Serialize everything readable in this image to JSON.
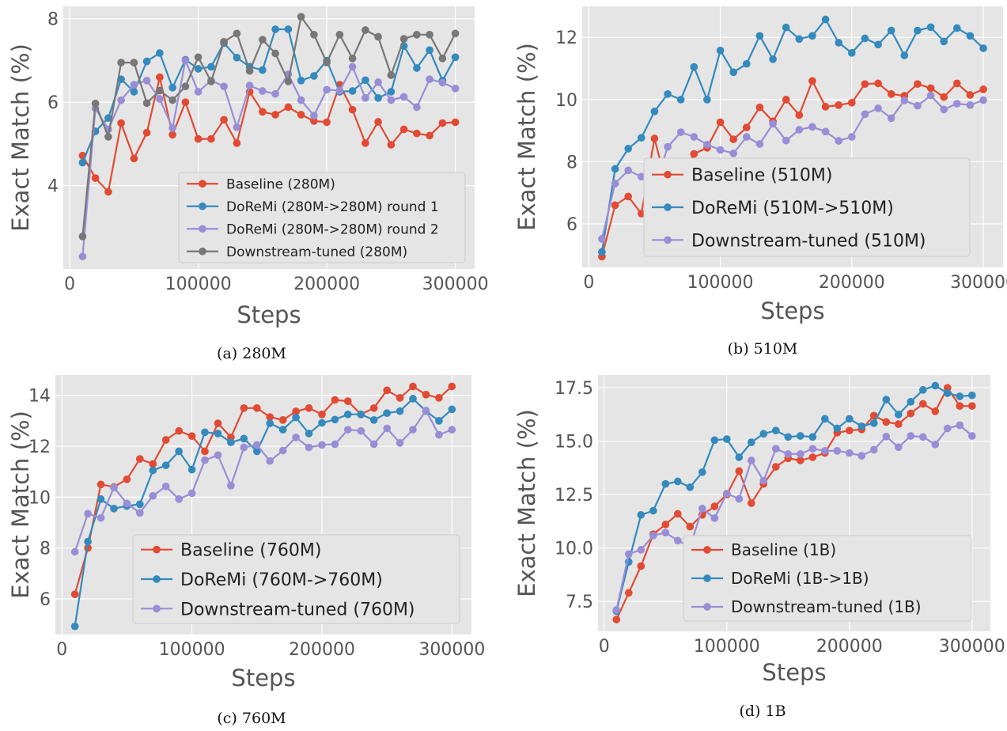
{
  "colors": {
    "baseline": "#E24A33",
    "doremi": "#348ABD",
    "doremi2": "#988ED5",
    "downstream": "#777777"
  },
  "chart_data": [
    {
      "type": "line",
      "caption": "(a) 280M",
      "xlabel": "Steps",
      "ylabel": "Exact Match (%)",
      "xlim": [
        -5000,
        315000
      ],
      "ylim": [
        2.0,
        8.3
      ],
      "xticks": [
        0,
        100000,
        200000,
        300000
      ],
      "xtick_labels": [
        "0",
        "100000",
        "200000",
        "300000"
      ],
      "yticks": [
        4,
        6,
        8
      ],
      "ytick_labels": [
        "4",
        "6",
        "8"
      ],
      "grid": true,
      "legend_position": "lower-right",
      "x": [
        10000,
        20000,
        30000,
        40000,
        50000,
        60000,
        70000,
        80000,
        90000,
        100000,
        110000,
        120000,
        130000,
        140000,
        150000,
        160000,
        170000,
        180000,
        190000,
        200000,
        210000,
        220000,
        230000,
        240000,
        250000,
        260000,
        270000,
        280000,
        290000,
        300000
      ],
      "series": [
        {
          "name": "Baseline (280M)",
          "color_key": "baseline",
          "values": [
            4.72,
            4.18,
            3.85,
            5.5,
            4.65,
            5.27,
            6.6,
            5.22,
            6.0,
            5.12,
            5.12,
            5.58,
            5.02,
            6.25,
            5.77,
            5.7,
            5.88,
            5.7,
            5.55,
            5.52,
            6.42,
            5.82,
            5.02,
            5.53,
            4.98,
            5.35,
            5.25,
            5.2,
            5.5,
            5.52
          ]
        },
        {
          "name": "DoReMi (280M->280M) round 1",
          "color_key": "doremi",
          "values": [
            4.55,
            5.3,
            5.62,
            6.55,
            6.25,
            6.98,
            7.18,
            6.35,
            7.02,
            6.8,
            6.85,
            7.42,
            7.07,
            6.85,
            6.77,
            7.75,
            7.75,
            6.52,
            6.63,
            7.0,
            6.25,
            6.27,
            6.53,
            6.1,
            6.25,
            7.35,
            6.82,
            7.25,
            6.52,
            7.08
          ]
        },
        {
          "name": "DoReMi (280M->280M) round 2",
          "color_key": "doremi2",
          "values": [
            2.3,
            5.85,
            5.35,
            6.05,
            6.42,
            6.52,
            6.08,
            5.38,
            7.0,
            6.25,
            6.52,
            6.38,
            5.4,
            6.4,
            6.27,
            6.2,
            6.67,
            6.05,
            5.68,
            6.3,
            6.28,
            6.85,
            6.1,
            6.48,
            6.05,
            6.13,
            5.88,
            6.55,
            6.47,
            6.33
          ]
        },
        {
          "name": "Downstream-tuned (280M)",
          "color_key": "downstream",
          "values": [
            2.78,
            5.97,
            5.17,
            6.95,
            6.95,
            5.98,
            6.28,
            6.05,
            6.38,
            7.08,
            6.5,
            7.45,
            7.65,
            6.75,
            7.5,
            7.17,
            6.5,
            8.05,
            7.62,
            6.95,
            7.62,
            7.05,
            7.73,
            7.57,
            6.65,
            7.52,
            7.62,
            7.62,
            7.05,
            7.65
          ]
        }
      ]
    },
    {
      "type": "line",
      "caption": "(b) 510M",
      "xlabel": "Steps",
      "ylabel": "Exact Match (%)",
      "xlim": [
        -5000,
        315000
      ],
      "ylim": [
        4.6,
        13.0
      ],
      "xticks": [
        0,
        100000,
        200000,
        300000
      ],
      "xtick_labels": [
        "0",
        "100000",
        "200000",
        "300000"
      ],
      "yticks": [
        6,
        8,
        10,
        12
      ],
      "ytick_labels": [
        "6",
        "8",
        "10",
        "12"
      ],
      "grid": true,
      "legend_position": "lower-right",
      "x": [
        10000,
        20000,
        30000,
        40000,
        50000,
        60000,
        70000,
        80000,
        90000,
        100000,
        110000,
        120000,
        130000,
        140000,
        150000,
        160000,
        170000,
        180000,
        190000,
        200000,
        210000,
        220000,
        230000,
        240000,
        250000,
        260000,
        270000,
        280000,
        290000,
        300000
      ],
      "series": [
        {
          "name": "Baseline (510M)",
          "color_key": "baseline",
          "values": [
            4.95,
            6.6,
            6.88,
            6.33,
            8.75,
            7.1,
            7.5,
            8.25,
            8.45,
            9.27,
            8.72,
            9.1,
            9.75,
            9.3,
            10.0,
            9.5,
            10.6,
            9.77,
            9.82,
            9.9,
            10.5,
            10.52,
            10.18,
            10.12,
            10.5,
            10.37,
            10.08,
            10.52,
            10.15,
            10.33
          ]
        },
        {
          "name": "DoReMi (510M->510M)",
          "color_key": "doremi",
          "values": [
            5.1,
            7.77,
            8.42,
            8.77,
            9.62,
            10.18,
            10.0,
            11.05,
            10.0,
            11.58,
            10.88,
            11.15,
            12.05,
            11.3,
            12.32,
            11.95,
            12.05,
            12.58,
            11.83,
            11.5,
            11.97,
            11.77,
            12.22,
            11.42,
            12.22,
            12.33,
            11.87,
            12.3,
            12.05,
            11.65
          ]
        },
        {
          "name": "Downstream-tuned (510M)",
          "color_key": "doremi2",
          "values": [
            5.52,
            7.3,
            7.72,
            7.52,
            7.15,
            8.48,
            8.95,
            8.8,
            8.55,
            8.38,
            8.27,
            8.8,
            8.57,
            9.22,
            8.68,
            9.03,
            9.12,
            8.97,
            8.67,
            8.8,
            9.53,
            9.72,
            9.4,
            9.97,
            9.8,
            10.13,
            9.68,
            9.87,
            9.82,
            9.98
          ]
        }
      ]
    },
    {
      "type": "line",
      "caption": "(c) 760M",
      "xlabel": "Steps",
      "ylabel": "Exact Match (%)",
      "xlim": [
        -5000,
        315000
      ],
      "ylim": [
        4.6,
        14.8
      ],
      "xticks": [
        0,
        100000,
        200000,
        300000
      ],
      "xtick_labels": [
        "0",
        "100000",
        "200000",
        "300000"
      ],
      "yticks": [
        6,
        8,
        10,
        12,
        14
      ],
      "ytick_labels": [
        "6",
        "8",
        "10",
        "12",
        "14"
      ],
      "grid": true,
      "legend_position": "lower-right",
      "x": [
        10000,
        20000,
        30000,
        40000,
        50000,
        60000,
        70000,
        80000,
        90000,
        100000,
        110000,
        120000,
        130000,
        140000,
        150000,
        160000,
        170000,
        180000,
        190000,
        200000,
        210000,
        220000,
        230000,
        240000,
        250000,
        260000,
        270000,
        280000,
        290000,
        300000
      ],
      "series": [
        {
          "name": "Baseline (760M)",
          "color_key": "baseline",
          "values": [
            6.18,
            8.0,
            10.5,
            10.4,
            10.7,
            11.5,
            11.3,
            12.25,
            12.6,
            12.4,
            11.8,
            12.9,
            12.35,
            13.5,
            13.5,
            13.15,
            13.03,
            13.37,
            13.5,
            13.25,
            13.82,
            13.77,
            13.25,
            13.5,
            14.2,
            13.9,
            14.35,
            14.03,
            13.9,
            14.35
          ]
        },
        {
          "name": "DoReMi (760M->760M)",
          "color_key": "doremi",
          "values": [
            4.92,
            8.25,
            9.92,
            9.55,
            9.65,
            9.72,
            11.05,
            11.25,
            11.8,
            11.08,
            12.55,
            12.5,
            12.15,
            12.3,
            11.8,
            12.9,
            12.65,
            13.13,
            12.5,
            12.92,
            13.05,
            13.25,
            13.25,
            13.03,
            13.3,
            13.38,
            13.87,
            13.38,
            13.0,
            13.45
          ]
        },
        {
          "name": "Downstream-tuned (760M)",
          "color_key": "doremi2",
          "values": [
            7.85,
            9.35,
            9.18,
            10.38,
            9.75,
            9.38,
            10.05,
            10.42,
            9.92,
            10.15,
            11.45,
            11.65,
            10.45,
            11.95,
            12.05,
            11.42,
            11.83,
            12.35,
            11.95,
            12.05,
            12.08,
            12.65,
            12.6,
            12.08,
            12.7,
            12.13,
            12.65,
            13.4,
            12.45,
            12.65
          ]
        }
      ]
    },
    {
      "type": "line",
      "caption": "(d) 1B",
      "xlabel": "Steps",
      "ylabel": "Exact Match (%)",
      "xlim": [
        -5000,
        315000
      ],
      "ylim": [
        6.1,
        18.1
      ],
      "xticks": [
        0,
        100000,
        200000,
        300000
      ],
      "xtick_labels": [
        "0",
        "100000",
        "200000",
        "300000"
      ],
      "yticks": [
        7.5,
        10.0,
        12.5,
        15.0,
        17.5
      ],
      "ytick_labels": [
        "7.5",
        "10.0",
        "12.5",
        "15.0",
        "17.5"
      ],
      "grid": true,
      "legend_position": "lower-right",
      "x": [
        10000,
        20000,
        30000,
        40000,
        50000,
        60000,
        70000,
        80000,
        90000,
        100000,
        110000,
        120000,
        130000,
        140000,
        150000,
        160000,
        170000,
        180000,
        190000,
        200000,
        210000,
        220000,
        230000,
        240000,
        250000,
        260000,
        270000,
        280000,
        290000,
        300000
      ],
      "series": [
        {
          "name": "Baseline (1B)",
          "color_key": "baseline",
          "values": [
            6.65,
            7.9,
            9.15,
            10.65,
            11.1,
            11.6,
            11.0,
            11.55,
            11.95,
            12.5,
            13.6,
            12.1,
            13.0,
            13.8,
            14.2,
            14.1,
            14.25,
            14.45,
            15.4,
            15.5,
            15.55,
            16.2,
            15.9,
            15.8,
            16.3,
            16.75,
            16.4,
            17.5,
            16.65,
            16.65
          ]
        },
        {
          "name": "DoReMi (1B->1B)",
          "color_key": "doremi",
          "values": [
            7.05,
            9.35,
            11.55,
            11.75,
            13.0,
            13.12,
            12.85,
            13.55,
            15.05,
            15.1,
            14.25,
            14.95,
            15.35,
            15.5,
            15.2,
            15.25,
            15.2,
            16.05,
            15.6,
            16.05,
            15.7,
            15.85,
            16.95,
            16.25,
            16.85,
            17.4,
            17.6,
            17.25,
            17.1,
            17.15
          ]
        },
        {
          "name": "Downstream-tuned (1B)",
          "color_key": "doremi2",
          "values": [
            7.1,
            9.72,
            9.92,
            10.58,
            10.72,
            10.35,
            10.05,
            11.85,
            11.4,
            12.55,
            12.3,
            14.1,
            13.15,
            14.65,
            14.4,
            14.4,
            14.65,
            14.55,
            14.55,
            14.45,
            14.32,
            14.6,
            15.22,
            14.72,
            15.25,
            15.2,
            14.85,
            15.6,
            15.75,
            15.25
          ]
        }
      ]
    }
  ]
}
